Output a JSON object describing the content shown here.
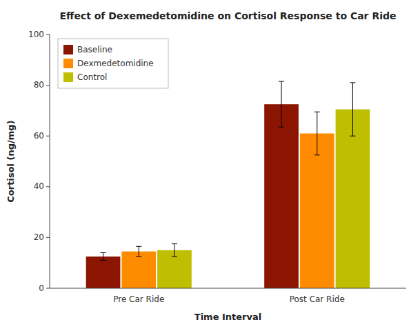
{
  "chart_data": {
    "type": "bar",
    "title": "Effect of Dexemedetomidine on Cortisol Response to Car Ride",
    "xlabel": "Time Interval",
    "ylabel": "Cortisol (ng/mg)",
    "categories": [
      "Pre Car Ride",
      "Post Car Ride"
    ],
    "series": [
      {
        "name": "Baseline",
        "color": "#8B1500",
        "values": [
          12.5,
          72.5
        ],
        "errors": [
          1.5,
          9.0
        ]
      },
      {
        "name": "Dexmedetomidine",
        "color": "#FF8C00",
        "values": [
          14.5,
          61.0
        ],
        "errors": [
          2.0,
          8.5
        ]
      },
      {
        "name": "Control",
        "color": "#BFBE00",
        "values": [
          15.0,
          70.5
        ],
        "errors": [
          2.5,
          10.5
        ]
      }
    ],
    "ylim": [
      0,
      100
    ],
    "yticks": [
      0,
      20,
      40,
      60,
      80,
      100
    ],
    "grid": false,
    "legend": "upper left"
  }
}
